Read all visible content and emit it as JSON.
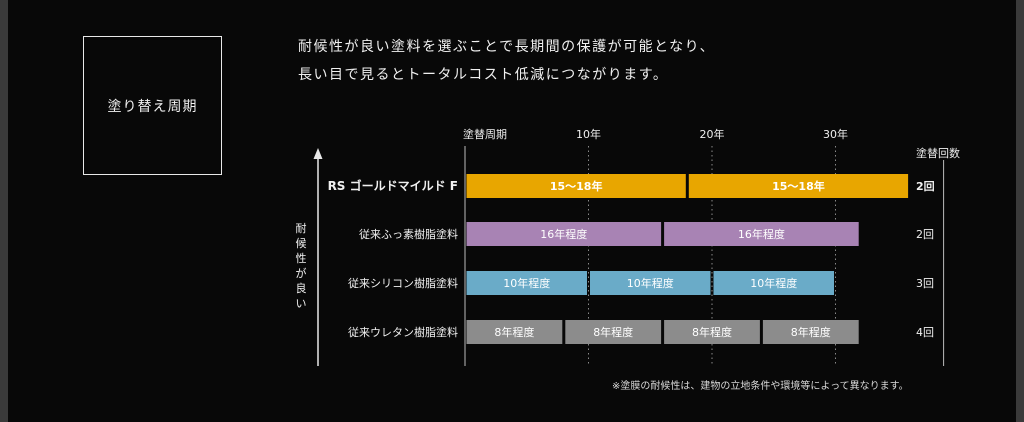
{
  "section": {
    "title": "塗り替え周期",
    "intro_lines": [
      "耐候性が良い塗料を選ぶことで長期間の保護が可能となり、",
      "長い目で見るとトータルコスト低減につながります。"
    ]
  },
  "note": "※塗膜の耐候性は、建物の立地条件や環境等によって異なります。",
  "colors": {
    "background": "#080808",
    "gold": "#e8a600",
    "fluorine": "#a883b4",
    "silicone": "#6aabc8",
    "urethane": "#8c8c8c",
    "gridline": "#8a8a8a",
    "text": "#f0f0f0"
  },
  "chart_data": {
    "type": "bar",
    "subtype": "timeline-gantt",
    "x_origin_label": "塗替周期",
    "x_ticks": [
      {
        "value": 10,
        "label": "10年"
      },
      {
        "value": 20,
        "label": "20年"
      },
      {
        "value": 30,
        "label": "30年"
      }
    ],
    "xlim": [
      0,
      36
    ],
    "count_header": "塗替回数",
    "y_axis_label": "耐候性が良い",
    "grid": "vertical dotted at 10, 20, 30",
    "rows": [
      {
        "name": "RS ゴールドマイルド F",
        "highlight": true,
        "color": "gold",
        "segments": [
          {
            "start": 0,
            "end": 18,
            "label": "15～18年"
          },
          {
            "start": 18,
            "end": 36,
            "label": "15～18年"
          }
        ],
        "count": "2回"
      },
      {
        "name": "従来ふっ素樹脂塗料",
        "highlight": false,
        "color": "fluorine",
        "segments": [
          {
            "start": 0,
            "end": 16,
            "label": "16年程度"
          },
          {
            "start": 16,
            "end": 32,
            "label": "16年程度"
          }
        ],
        "count": "2回"
      },
      {
        "name": "従来シリコン樹脂塗料",
        "highlight": false,
        "color": "silicone",
        "segments": [
          {
            "start": 0,
            "end": 10,
            "label": "10年程度"
          },
          {
            "start": 10,
            "end": 20,
            "label": "10年程度"
          },
          {
            "start": 20,
            "end": 30,
            "label": "10年程度"
          }
        ],
        "count": "3回"
      },
      {
        "name": "従来ウレタン樹脂塗料",
        "highlight": false,
        "color": "urethane",
        "segments": [
          {
            "start": 0,
            "end": 8,
            "label": "8年程度"
          },
          {
            "start": 8,
            "end": 16,
            "label": "8年程度"
          },
          {
            "start": 16,
            "end": 24,
            "label": "8年程度"
          },
          {
            "start": 24,
            "end": 32,
            "label": "8年程度"
          }
        ],
        "count": "4回"
      }
    ]
  }
}
